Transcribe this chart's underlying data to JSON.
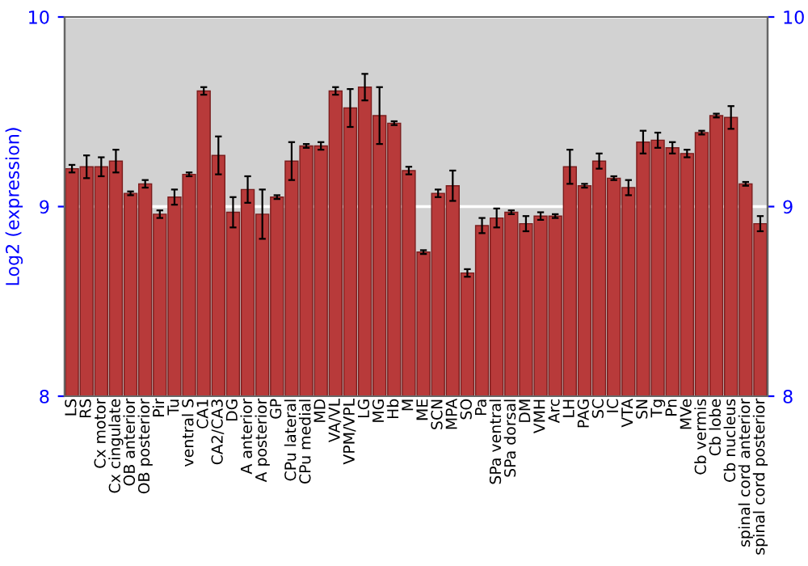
{
  "chart_data": {
    "type": "bar",
    "ylabel": "Log2 (expression)",
    "categories": [
      "LS",
      "RS",
      "Cx motor",
      "Cx cingulate",
      "OB anterior",
      "OB posterior",
      "Pir",
      "Tu",
      "ventral S",
      "CA1",
      "CA2/CA3",
      "DG",
      "A anterior",
      "A posterior",
      "GP",
      "CPu lateral",
      "CPu medial",
      "MD",
      "VA/VL",
      "VPM/VPL",
      "LG",
      "MG",
      "Hb",
      "M",
      "ME",
      "SCN",
      "MPA",
      "SO",
      "Pa",
      "SPa ventral",
      "SPa dorsal",
      "DM",
      "VMH",
      "Arc",
      "LH",
      "PAG",
      "SC",
      "IC",
      "VTA",
      "SN",
      "Tg",
      "Pn",
      "MVe",
      "Cb vermis",
      "Cb lobe",
      "Cb nucleus",
      "spinal cord anterior",
      "spinal cord posterior"
    ],
    "values": [
      9.2,
      9.21,
      9.21,
      9.24,
      9.07,
      9.12,
      8.96,
      9.05,
      9.17,
      9.61,
      9.27,
      8.97,
      9.09,
      8.96,
      9.05,
      9.24,
      9.32,
      9.32,
      9.61,
      9.52,
      9.63,
      9.48,
      9.44,
      9.19,
      8.76,
      9.07,
      9.11,
      8.65,
      8.9,
      8.94,
      8.97,
      8.91,
      8.95,
      8.95,
      9.21,
      9.11,
      9.24,
      9.15,
      9.1,
      9.34,
      9.35,
      9.31,
      9.28,
      9.39,
      9.48,
      9.47,
      9.12,
      8.91
    ],
    "errors": [
      0.02,
      0.06,
      0.05,
      0.06,
      0.01,
      0.02,
      0.02,
      0.04,
      0.01,
      0.02,
      0.1,
      0.08,
      0.07,
      0.13,
      0.01,
      0.1,
      0.01,
      0.02,
      0.02,
      0.1,
      0.07,
      0.15,
      0.01,
      0.02,
      0.01,
      0.02,
      0.08,
      0.02,
      0.04,
      0.05,
      0.01,
      0.04,
      0.02,
      0.01,
      0.09,
      0.01,
      0.04,
      0.01,
      0.04,
      0.06,
      0.04,
      0.03,
      0.02,
      0.01,
      0.01,
      0.06,
      0.01,
      0.04
    ],
    "color": "#b83a3a",
    "ylim": [
      8,
      10
    ],
    "yticks": [
      8,
      9,
      10
    ],
    "y2lim": [
      8,
      10
    ],
    "y2ticks": [
      8,
      9,
      10
    ],
    "grid": "y"
  }
}
